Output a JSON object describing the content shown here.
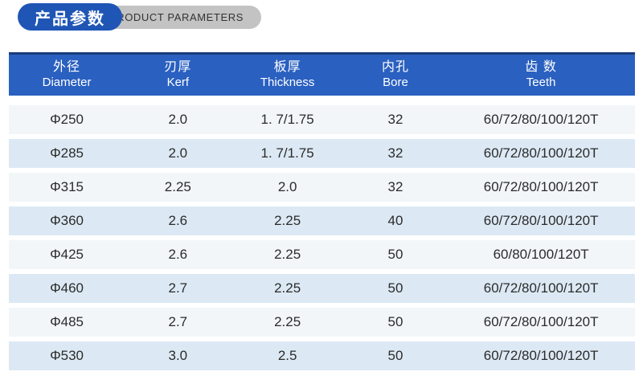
{
  "title_badge": {
    "zh": "产品参数",
    "en": "PRODUCT PARAMETERS",
    "pill_color": "#1f55b5",
    "tail_color": "#c3c3c3"
  },
  "table": {
    "header_bg": "#2a60c0",
    "header_top_border": "#1b3c7c",
    "row_bg_light": "#f2f6f9",
    "row_bg_blue": "#dce9f4",
    "columns": [
      {
        "zh": "外径",
        "en": "Diameter"
      },
      {
        "zh": "刃厚",
        "en": "Kerf"
      },
      {
        "zh": "板厚",
        "en": "Thickness"
      },
      {
        "zh": "内孔",
        "en": "Bore"
      },
      {
        "zh": "齿 数",
        "en": "Teeth"
      }
    ],
    "rows": [
      [
        "Φ250",
        "2.0",
        "1. 7/1.75",
        "32",
        "60/72/80/100/120T"
      ],
      [
        "Φ285",
        "2.0",
        "1. 7/1.75",
        "32",
        "60/72/80/100/120T"
      ],
      [
        "Φ315",
        "2.25",
        "2.0",
        "32",
        "60/72/80/100/120T"
      ],
      [
        "Φ360",
        "2.6",
        "2.25",
        "40",
        "60/72/80/100/120T"
      ],
      [
        "Φ425",
        "2.6",
        "2.25",
        "50",
        "60/80/100/120T"
      ],
      [
        "Φ460",
        "2.7",
        "2.25",
        "50",
        "60/72/80/100/120T"
      ],
      [
        "Φ485",
        "2.7",
        "2.25",
        "50",
        "60/72/80/100/120T"
      ],
      [
        "Φ530",
        "3.0",
        "2.5",
        "50",
        "60/72/80/100/120T"
      ]
    ]
  }
}
